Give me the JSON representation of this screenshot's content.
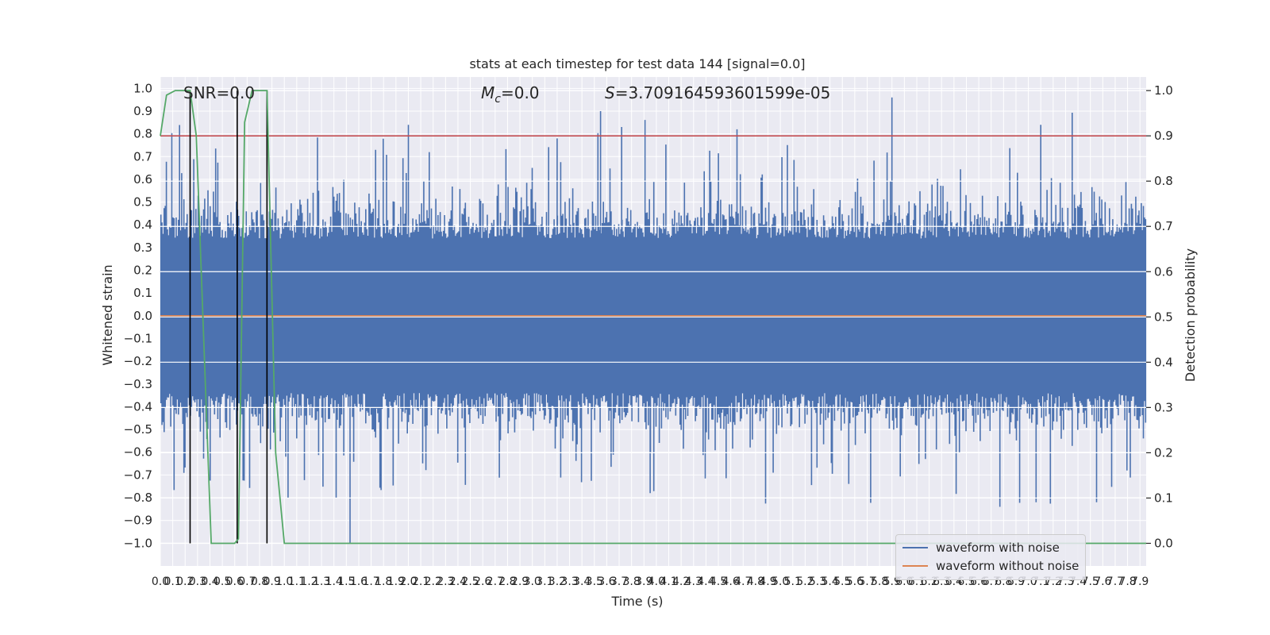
{
  "chart_data": {
    "type": "line",
    "title": "stats at each timestep for test data 144 [signal=0.0]",
    "xlabel": "Time (s)",
    "ylabel": "Whitened strain",
    "y2label": "Detection probability",
    "xlim": [
      0.0,
      7.95
    ],
    "ylim": [
      -1.1,
      1.05
    ],
    "y2lim": [
      -0.05,
      1.03
    ],
    "grid": true,
    "legend_position": "lower-right",
    "x_ticks": [
      "0.0",
      "0.1",
      "0.2",
      "0.3",
      "0.4",
      "0.5",
      "0.6",
      "0.7",
      "0.8",
      "0.9",
      "1.0",
      "1.1",
      "1.2",
      "1.3",
      "1.4",
      "1.5",
      "1.6",
      "1.7",
      "1.8",
      "1.9",
      "2.0",
      "2.1",
      "2.2",
      "2.3",
      "2.4",
      "2.5",
      "2.6",
      "2.7",
      "2.8",
      "2.9",
      "3.0",
      "3.1",
      "3.2",
      "3.3",
      "3.4",
      "3.5",
      "3.6",
      "3.7",
      "3.8",
      "3.9",
      "4.0",
      "4.1",
      "4.2",
      "4.3",
      "4.4",
      "4.5",
      "4.6",
      "4.7",
      "4.8",
      "4.9",
      "5.0",
      "5.1",
      "5.2",
      "5.3",
      "5.4",
      "5.5",
      "5.6",
      "5.7",
      "5.8",
      "5.9",
      "6.0",
      "6.1",
      "6.2",
      "6.3",
      "6.4",
      "6.5",
      "6.6",
      "6.7",
      "6.8",
      "6.9",
      "7.0",
      "7.1",
      "7.2",
      "7.3",
      "7.4",
      "7.5",
      "7.6",
      "7.7",
      "7.8",
      "7.9"
    ],
    "y_ticks": [
      "1.0",
      "0.9",
      "0.8",
      "0.7",
      "0.6",
      "0.5",
      "0.4",
      "0.3",
      "0.2",
      "0.1",
      "0.0",
      "−0.1",
      "−0.2",
      "−0.3",
      "−0.4",
      "−0.5",
      "−0.6",
      "−0.7",
      "−0.8",
      "−0.9",
      "−1.0"
    ],
    "y2_ticks": [
      "0.0",
      "0.1",
      "0.2",
      "0.3",
      "0.4",
      "0.5",
      "0.6",
      "0.7",
      "0.8",
      "0.9",
      "1.0"
    ],
    "annotations": {
      "snr": "SNR=0.0",
      "mc": "=0.0",
      "mc_symbol": "M",
      "mc_subscript": "c",
      "s": "=3.709164593601599e-05",
      "s_symbol": "S"
    },
    "series": [
      {
        "name": "waveform with noise",
        "color": "#4c72b0",
        "kind": "noise",
        "envelope_typical": 0.4,
        "peak_max": 0.96,
        "trough_min": -1.0
      },
      {
        "name": "waveform without noise",
        "color": "#dd8452",
        "y": 0.0
      }
    ],
    "threshold_line": {
      "y2": 0.9,
      "color": "#c44e52"
    },
    "detection_probability": {
      "color": "#55a868",
      "x": [
        0.0,
        0.05,
        0.12,
        0.24,
        0.29,
        0.37,
        0.41,
        0.46,
        0.52,
        0.6,
        0.63,
        0.68,
        0.74,
        0.79,
        0.86,
        0.93,
        1.0,
        7.95
      ],
      "y": [
        0.9,
        0.99,
        1.0,
        1.0,
        0.9,
        0.3,
        0.0,
        0.0,
        0.0,
        0.0,
        0.01,
        0.93,
        1.0,
        1.0,
        1.0,
        0.2,
        0.0,
        0.0
      ]
    },
    "vertical_markers": {
      "x": [
        0.24,
        0.62,
        0.86
      ],
      "color": "#000000",
      "y2_range": [
        0.0,
        1.0
      ]
    }
  }
}
